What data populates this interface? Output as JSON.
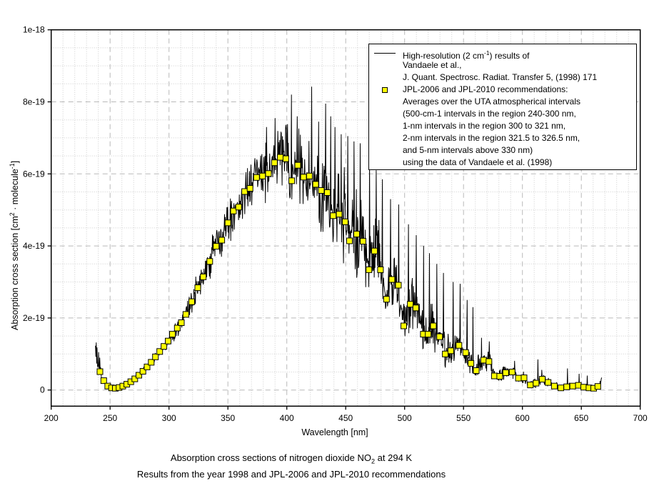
{
  "caption": {
    "line1_pre": "Absorption cross sections of nitrogen dioxide NO",
    "line1_sub": "2",
    "line1_post": " at 294 K",
    "line2": "Results from the year 1998 and JPL-2006 and JPL-2010 recommendations"
  },
  "axes": {
    "x": {
      "label": "Wavelength [nm]",
      "min": 200,
      "max": 700,
      "major_ticks": [
        200,
        250,
        300,
        350,
        400,
        450,
        500,
        550,
        600,
        650,
        700
      ],
      "minor_step_nm": 10
    },
    "y": {
      "label_pre": "Absorption cross section [cm",
      "label_sup1": "2",
      "label_mid": " · molecule",
      "label_sup2": "-1",
      "label_post": "]",
      "major_tick_labels": [
        "0",
        "2e-19",
        "4e-19",
        "6e-19",
        "8e-19",
        "1e-18"
      ],
      "major_tick_values_1e19": [
        0,
        2,
        4,
        6,
        8,
        10
      ],
      "minor_step_1e19": 0.5,
      "axis_min_1e19": -0.45,
      "axis_max_1e19": 10
    }
  },
  "legend": {
    "line_series": {
      "l1_pre": "High-resolution (2 cm",
      "l1_sup": "-1",
      "l1_post": ") results of",
      "l2": "Vandaele et al.,",
      "l3": "J. Quant. Spectrosc. Radiat. Transfer 5, (1998) 171"
    },
    "square_series": {
      "l1": "JPL-2006 and JPL-2010 recommendations:",
      "l2": "Averages over the UTA atmospherical intervals",
      "l3": "(500-cm-1 intervals in the region 240-300 nm,",
      "l4": "1-nm intervals in the region 300 to 321 nm,",
      "l5": "2-nm intervals in the region 321.5 to 326.5 nm,",
      "l6": "and 5-nm intervals above 330 nm)",
      "l7": "using the data of Vandaele et al. (1998)"
    }
  },
  "colors": {
    "line": "#000000",
    "marker_fill": "#ffff00",
    "marker_edge": "#000000",
    "grid_major": "#b9b9b9",
    "grid_minor": "#cdcdcd",
    "frame": "#000000",
    "text": "#000000",
    "background": "#ffffff"
  },
  "chart_data": {
    "type": "line",
    "title": "Absorption cross sections of nitrogen dioxide NO2 at 294 K",
    "subtitle": "Results from the year 1998 and JPL-2006 and JPL-2010 recommendations",
    "xlabel": "Wavelength [nm]",
    "ylabel": "Absorption cross section [cm2 · molecule-1]",
    "xlim_nm": [
      200,
      700
    ],
    "ylim_cm2_per_molecule": [
      -4.5e-20,
      1e-18
    ],
    "grid": true,
    "legend_position": "top-right",
    "value_unit": "1e-19 cm2 molecule-1",
    "series": [
      {
        "name": "High-resolution (2 cm-1) results of Vandaele et al., J. Quant. Spectrosc. Radiat. Transfer 5, (1998) 171",
        "style": "line",
        "x_start_nm": 237.6,
        "x_end_nm": 667.4,
        "reconstruction": {
          "note": "noisy high-resolution spectrum rebuilt as smoothed JPL curve plus deterministic pseudo-noise",
          "seed": 19981712,
          "step_nm": 0.33,
          "base_prefix_points": [
            [
              237.6,
              0.8
            ],
            [
              238.4,
              0.62
            ],
            [
              239.2,
              0.55
            ],
            [
              240.2,
              0.53
            ]
          ],
          "base_suffix_points": [
            [
              665.5,
              0.12
            ],
            [
              666.6,
              0.22
            ],
            [
              667.4,
              0.34
            ]
          ],
          "noise_amplitude_points": [
            [
              237.6,
              0.5
            ],
            [
              240,
              0.45
            ],
            [
              243,
              0.18
            ],
            [
              246,
              0.05
            ],
            [
              252,
              0.035
            ],
            [
              258,
              0.04
            ],
            [
              264,
              0.05
            ],
            [
              270,
              0.06
            ],
            [
              276,
              0.08
            ],
            [
              282,
              0.1
            ],
            [
              288,
              0.12
            ],
            [
              294,
              0.15
            ],
            [
              300,
              0.2
            ],
            [
              306,
              0.24
            ],
            [
              312,
              0.3
            ],
            [
              318,
              0.36
            ],
            [
              324,
              0.42
            ],
            [
              330,
              0.48
            ],
            [
              336,
              0.52
            ],
            [
              342,
              0.56
            ],
            [
              348,
              0.6
            ],
            [
              354,
              0.65
            ],
            [
              360,
              0.7
            ],
            [
              366,
              0.72
            ],
            [
              372,
              0.75
            ],
            [
              378,
              0.78
            ],
            [
              384,
              0.82
            ],
            [
              390,
              0.85
            ],
            [
              396,
              0.88
            ],
            [
              402,
              0.95
            ],
            [
              408,
              1.0
            ],
            [
              414,
              1.05
            ],
            [
              420,
              1.1
            ],
            [
              426,
              1.2
            ],
            [
              432,
              1.3
            ],
            [
              438,
              1.35
            ],
            [
              444,
              1.3
            ],
            [
              450,
              1.25
            ],
            [
              456,
              1.2
            ],
            [
              462,
              1.15
            ],
            [
              468,
              1.1
            ],
            [
              474,
              1.05
            ],
            [
              480,
              1.0
            ],
            [
              486,
              0.95
            ],
            [
              492,
              0.9
            ],
            [
              498,
              0.85
            ],
            [
              504,
              0.8
            ],
            [
              510,
              0.72
            ],
            [
              516,
              0.65
            ],
            [
              522,
              0.6
            ],
            [
              528,
              0.55
            ],
            [
              534,
              0.5
            ],
            [
              540,
              0.48
            ],
            [
              546,
              0.45
            ],
            [
              552,
              0.4
            ],
            [
              558,
              0.36
            ],
            [
              564,
              0.34
            ],
            [
              570,
              0.3
            ],
            [
              576,
              0.25
            ],
            [
              582,
              0.22
            ],
            [
              588,
              0.2
            ],
            [
              594,
              0.18
            ],
            [
              600,
              0.15
            ],
            [
              606,
              0.13
            ],
            [
              612,
              0.15
            ],
            [
              618,
              0.13
            ],
            [
              624,
              0.11
            ],
            [
              630,
              0.1
            ],
            [
              636,
              0.1
            ],
            [
              642,
              0.1
            ],
            [
              648,
              0.09
            ],
            [
              654,
              0.08
            ],
            [
              660,
              0.07
            ],
            [
              666,
              0.07
            ]
          ],
          "peak_spikes": [
            [
              238.2,
              1.32
            ],
            [
              239.0,
              1.18
            ],
            [
              240.4,
              1.05
            ],
            [
              382.9,
              7.3
            ],
            [
              390.1,
              7.55
            ],
            [
              404.0,
              8.2
            ],
            [
              408.9,
              7.6
            ],
            [
              421.2,
              8.42
            ],
            [
              427.0,
              7.45
            ],
            [
              433.1,
              7.95
            ],
            [
              437.2,
              7.6
            ],
            [
              441.0,
              7.3
            ],
            [
              446.1,
              7.1
            ],
            [
              451.9,
              7.05
            ],
            [
              457.0,
              6.9
            ],
            [
              462.2,
              6.85
            ],
            [
              470.1,
              6.3
            ],
            [
              476.0,
              6.1
            ],
            [
              481.2,
              5.85
            ],
            [
              488.1,
              5.3
            ],
            [
              495.0,
              5.15
            ],
            [
              503.2,
              4.6
            ],
            [
              509.9,
              4.3
            ],
            [
              516.1,
              4.0
            ],
            [
              521.0,
              3.8
            ],
            [
              527.2,
              3.5
            ],
            [
              533.0,
              3.25
            ],
            [
              541.1,
              3.0
            ],
            [
              547.2,
              2.95
            ],
            [
              553.0,
              2.5
            ],
            [
              558.1,
              2.3
            ],
            [
              565.2,
              1.45
            ],
            [
              572.0,
              1.35
            ],
            [
              593.3,
              0.81
            ],
            [
              613.0,
              0.85
            ],
            [
              616.3,
              0.56
            ],
            [
              638.2,
              0.6
            ],
            [
              648.0,
              0.45
            ],
            [
              655.1,
              0.4
            ]
          ]
        }
      },
      {
        "name": "JPL-2006 and JPL-2010 recommendations (averages over UTA atmospherical intervals, data of Vandaele et al. 1998)",
        "style": "scatter",
        "marker": "square",
        "marker_size_px": 8,
        "points": [
          [
            241.4,
            0.51
          ],
          [
            244.6,
            0.26
          ],
          [
            248.0,
            0.11
          ],
          [
            251.2,
            0.06
          ],
          [
            254.4,
            0.05
          ],
          [
            257.6,
            0.07
          ],
          [
            260.8,
            0.11
          ],
          [
            264.2,
            0.16
          ],
          [
            267.6,
            0.23
          ],
          [
            271.0,
            0.31
          ],
          [
            274.4,
            0.41
          ],
          [
            277.9,
            0.52
          ],
          [
            281.4,
            0.64
          ],
          [
            284.9,
            0.77
          ],
          [
            288.5,
            0.92
          ],
          [
            292.1,
            1.07
          ],
          [
            295.7,
            1.21
          ],
          [
            299.3,
            1.36
          ],
          [
            302.9,
            1.55
          ],
          [
            307.0,
            1.72
          ],
          [
            310.5,
            1.87
          ],
          [
            314.3,
            2.1
          ],
          [
            319.3,
            2.45
          ],
          [
            324.4,
            2.84
          ],
          [
            329.1,
            3.14
          ],
          [
            334.6,
            3.57
          ],
          [
            340.0,
            3.99
          ],
          [
            344.8,
            4.16
          ],
          [
            350.0,
            4.64
          ],
          [
            354.7,
            4.97
          ],
          [
            359.1,
            5.08
          ],
          [
            364.2,
            5.51
          ],
          [
            368.8,
            5.6
          ],
          [
            374.3,
            5.9
          ],
          [
            379.4,
            5.94
          ],
          [
            384.4,
            6.01
          ],
          [
            389.5,
            6.31
          ],
          [
            394.5,
            6.46
          ],
          [
            399.2,
            6.42
          ],
          [
            404.2,
            5.81
          ],
          [
            409.3,
            6.24
          ],
          [
            414.2,
            5.91
          ],
          [
            419.2,
            5.94
          ],
          [
            424.5,
            5.71
          ],
          [
            429.3,
            5.54
          ],
          [
            434.4,
            5.48
          ],
          [
            439.4,
            4.84
          ],
          [
            444.5,
            4.88
          ],
          [
            449.5,
            4.67
          ],
          [
            453.2,
            4.14
          ],
          [
            459.3,
            4.33
          ],
          [
            464.7,
            4.13
          ],
          [
            469.7,
            3.34
          ],
          [
            474.4,
            3.86
          ],
          [
            479.5,
            3.34
          ],
          [
            484.6,
            2.52
          ],
          [
            489.2,
            3.07
          ],
          [
            494.7,
            2.91
          ],
          [
            499.3,
            1.78
          ],
          [
            504.8,
            2.38
          ],
          [
            509.5,
            2.28
          ],
          [
            515.9,
            1.55
          ],
          [
            520.0,
            1.55
          ],
          [
            524.4,
            1.78
          ],
          [
            529.7,
            1.48
          ],
          [
            534.5,
            1.0
          ],
          [
            539.2,
            1.09
          ],
          [
            546.1,
            1.24
          ],
          [
            551.8,
            1.04
          ],
          [
            556.3,
            0.74
          ],
          [
            560.8,
            0.54
          ],
          [
            567.1,
            0.83
          ],
          [
            571.6,
            0.79
          ],
          [
            576.2,
            0.39
          ],
          [
            580.7,
            0.38
          ],
          [
            585.8,
            0.48
          ],
          [
            591.3,
            0.5
          ],
          [
            596.6,
            0.33
          ],
          [
            601.4,
            0.34
          ],
          [
            606.7,
            0.14
          ],
          [
            611.6,
            0.19
          ],
          [
            616.9,
            0.3
          ],
          [
            621.8,
            0.21
          ],
          [
            627.1,
            0.11
          ],
          [
            632.6,
            0.06
          ],
          [
            637.6,
            0.09
          ],
          [
            642.7,
            0.11
          ],
          [
            647.5,
            0.13
          ],
          [
            652.0,
            0.08
          ],
          [
            656.5,
            0.06
          ],
          [
            660.5,
            0.05
          ],
          [
            664.0,
            0.1
          ]
        ]
      }
    ]
  }
}
